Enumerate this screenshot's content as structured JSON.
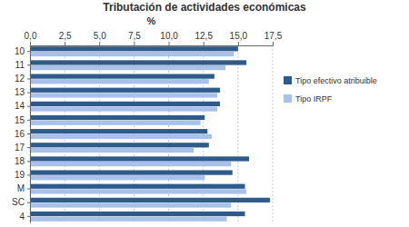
{
  "chart_data": {
    "type": "bar",
    "orientation": "horizontal",
    "title": "Tributación de actividades económicas",
    "xlabel": "%",
    "categories": [
      "10",
      "11",
      "12",
      "13",
      "14",
      "15",
      "16",
      "17",
      "18",
      "19",
      "M",
      "SC",
      "4"
    ],
    "series": [
      {
        "name": "Tipo efectivo atribuible",
        "color": "#2f5b8c",
        "values": [
          15.0,
          15.6,
          13.3,
          13.7,
          13.7,
          12.6,
          12.8,
          12.9,
          15.8,
          14.6,
          15.5,
          17.3,
          15.5
        ]
      },
      {
        "name": "Tipo IRPF",
        "color": "#a9c0e8",
        "values": [
          14.7,
          14.1,
          12.9,
          13.5,
          13.5,
          12.3,
          13.1,
          11.8,
          14.5,
          12.6,
          15.6,
          14.5,
          14.2
        ]
      }
    ],
    "xlim": [
      0,
      17.5
    ],
    "xticks": [
      {
        "value": 0,
        "label": "0,0"
      },
      {
        "value": 2.5,
        "label": "2,5"
      },
      {
        "value": 5,
        "label": "5,0"
      },
      {
        "value": 7.5,
        "label": "7,5"
      },
      {
        "value": 10,
        "label": "10,0"
      },
      {
        "value": 12.5,
        "label": "12,5"
      },
      {
        "value": 15,
        "label": "15,0"
      },
      {
        "value": 17.5,
        "label": "17,5"
      }
    ],
    "grid": true,
    "legend": "right"
  }
}
